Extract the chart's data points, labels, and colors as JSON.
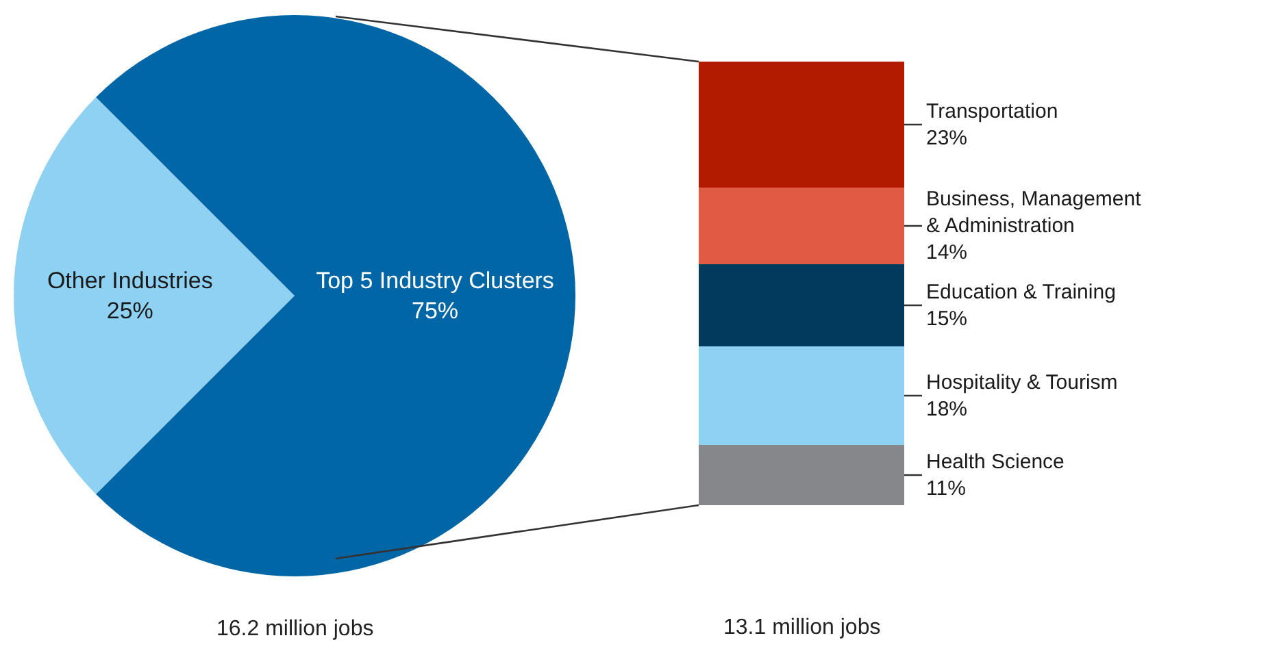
{
  "chart_data": [
    {
      "type": "pie",
      "categories": [
        "Other Industries",
        "Top 5 Industry Clusters"
      ],
      "values": [
        25,
        75
      ],
      "colors": [
        "#8ed1f2",
        "#0066a6"
      ],
      "value_labels": [
        "25%",
        "75%"
      ],
      "annotations": [
        "16.2 million jobs"
      ]
    },
    {
      "type": "bar",
      "stacked": true,
      "categories": [
        null
      ],
      "series": [
        {
          "name": "Health Science",
          "color": "#86878a",
          "values": [
            11
          ],
          "value_labels": [
            "11%"
          ]
        },
        {
          "name": "Hospitality & Tourism",
          "color": "#8ed1f2",
          "values": [
            18
          ],
          "value_labels": [
            "18%"
          ]
        },
        {
          "name": "Education & Training",
          "color": "#003a5d",
          "values": [
            15
          ],
          "value_labels": [
            "15%"
          ]
        },
        {
          "name": "Business, Management\n& Administration",
          "color": "#e05a44",
          "values": [
            14
          ],
          "value_labels": [
            "14%"
          ]
        },
        {
          "name": "Transportation",
          "color": "#b31b00",
          "values": [
            23
          ],
          "value_labels": [
            "23%"
          ]
        }
      ],
      "annotations": [
        "13.1 million jobs"
      ]
    }
  ]
}
